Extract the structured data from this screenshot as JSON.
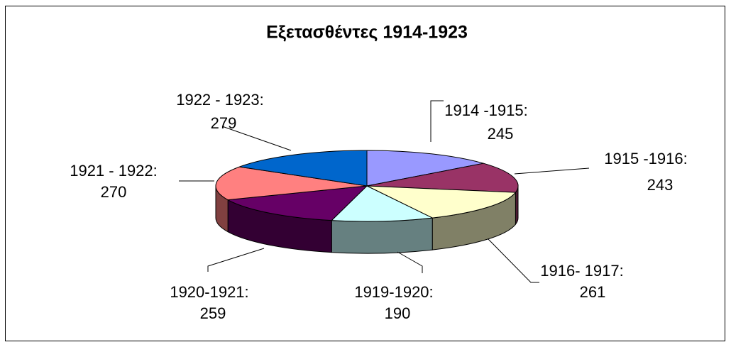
{
  "chart_data": {
    "type": "pie",
    "title": "Εξετασθέντες 1914-1923",
    "categories": [
      "1914 -1915:",
      "1915 -1916:",
      "1916- 1917:",
      "1919-1920:",
      "1920-1921:",
      "1921 - 1922:",
      "1922 - 1923:"
    ],
    "values": [
      245,
      243,
      261,
      190,
      259,
      270,
      279
    ],
    "colors": [
      "#9999ff",
      "#993366",
      "#ffffcc",
      "#ccffff",
      "#660066",
      "#ff8080",
      "#0066cc"
    ]
  }
}
